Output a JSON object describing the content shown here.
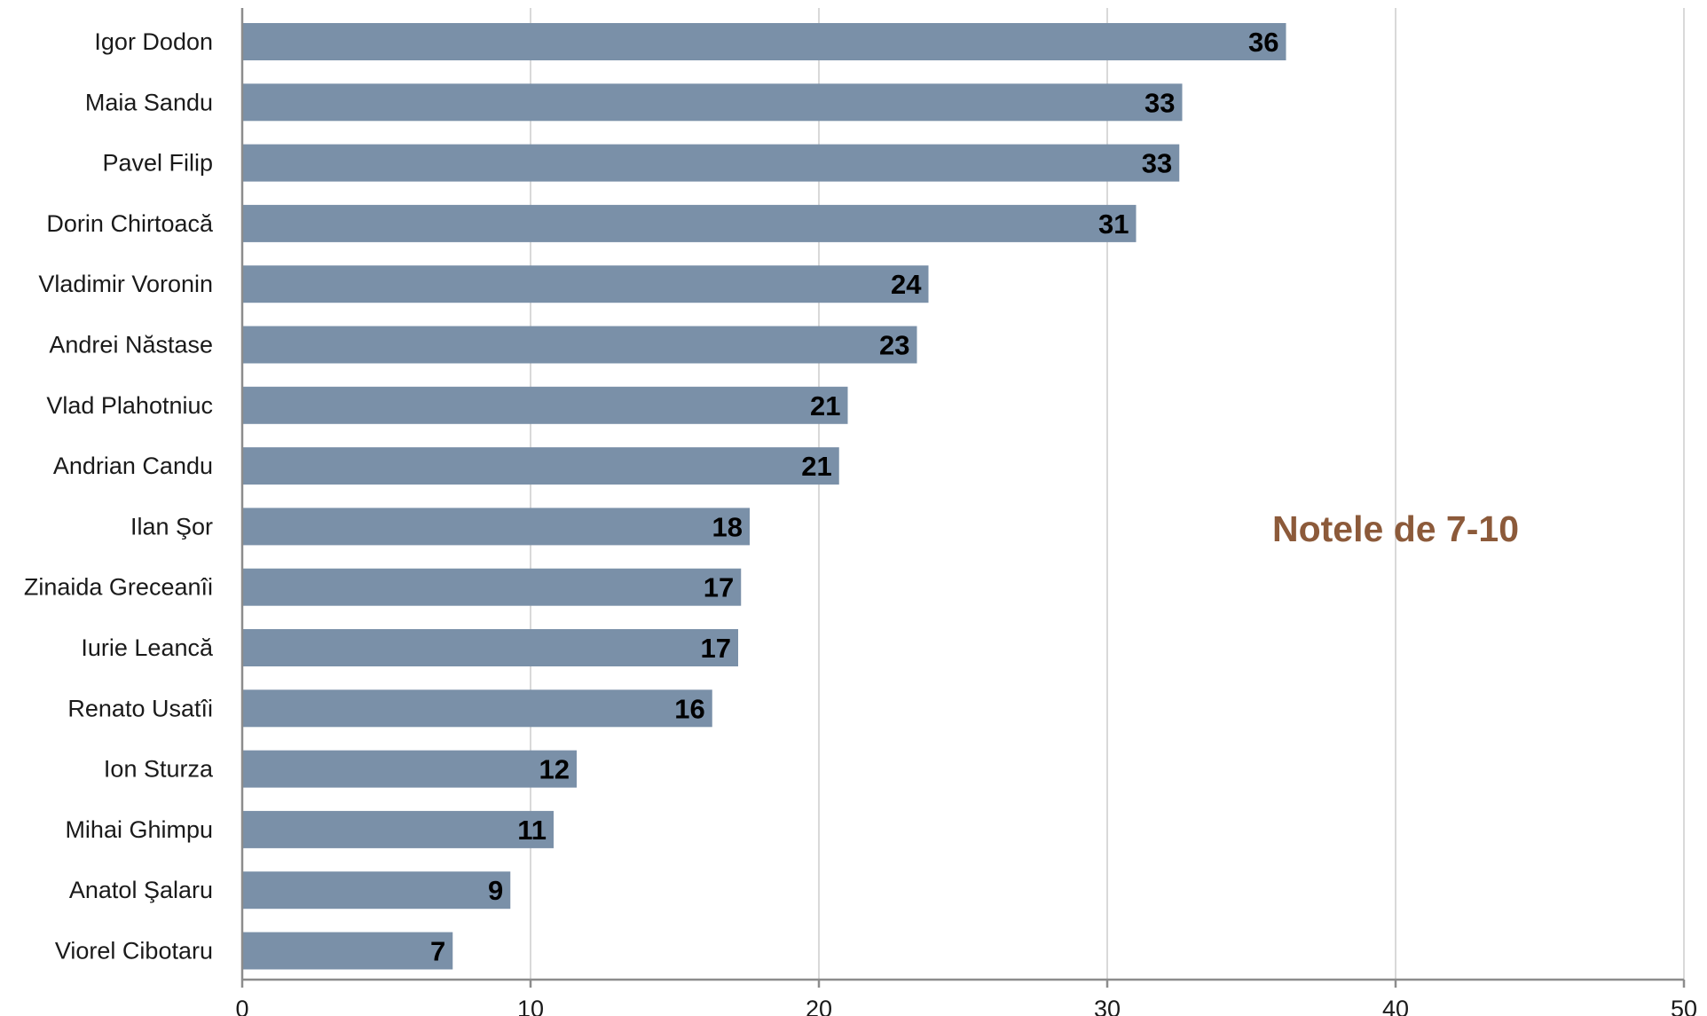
{
  "chart_data": {
    "type": "bar",
    "orientation": "horizontal",
    "categories": [
      "Igor Dodon",
      "Maia Sandu",
      "Pavel Filip",
      "Dorin Chirtoacă",
      "Vladimir Voronin",
      "Andrei Năstase",
      "Vlad Plahotniuc",
      "Andrian Candu",
      "Ilan Şor",
      "Zinaida Greceanîi",
      "Iurie Leancă",
      "Renato Usatîi",
      "Ion Sturza",
      "Mihai Ghimpu",
      "Anatol Şalaru",
      "Viorel Cibotaru"
    ],
    "values": [
      36.2,
      32.6,
      32.5,
      31.0,
      23.8,
      23.4,
      21.0,
      20.7,
      17.6,
      17.3,
      17.2,
      16.3,
      11.6,
      10.8,
      9.3,
      7.3
    ],
    "data_labels": [
      "36",
      "33",
      "33",
      "31",
      "24",
      "23",
      "21",
      "21",
      "18",
      "17",
      "17",
      "16",
      "12",
      "11",
      "9",
      "7"
    ],
    "xlim": [
      0,
      50
    ],
    "xticks": [
      0,
      10,
      20,
      30,
      40,
      50
    ],
    "xtick_labels": [
      "0",
      "10",
      "20",
      "30",
      "40",
      "50"
    ],
    "annotation": "Notele de 7-10",
    "grid": "vertical",
    "legend": "none",
    "title": "",
    "xlabel": "",
    "ylabel": ""
  },
  "colors": {
    "bar": "#7a90a8",
    "grid": "#d9d9d9",
    "axis": "#8c8c8c",
    "annotation": "#8c5a3a",
    "text": "#1a1a1a"
  }
}
